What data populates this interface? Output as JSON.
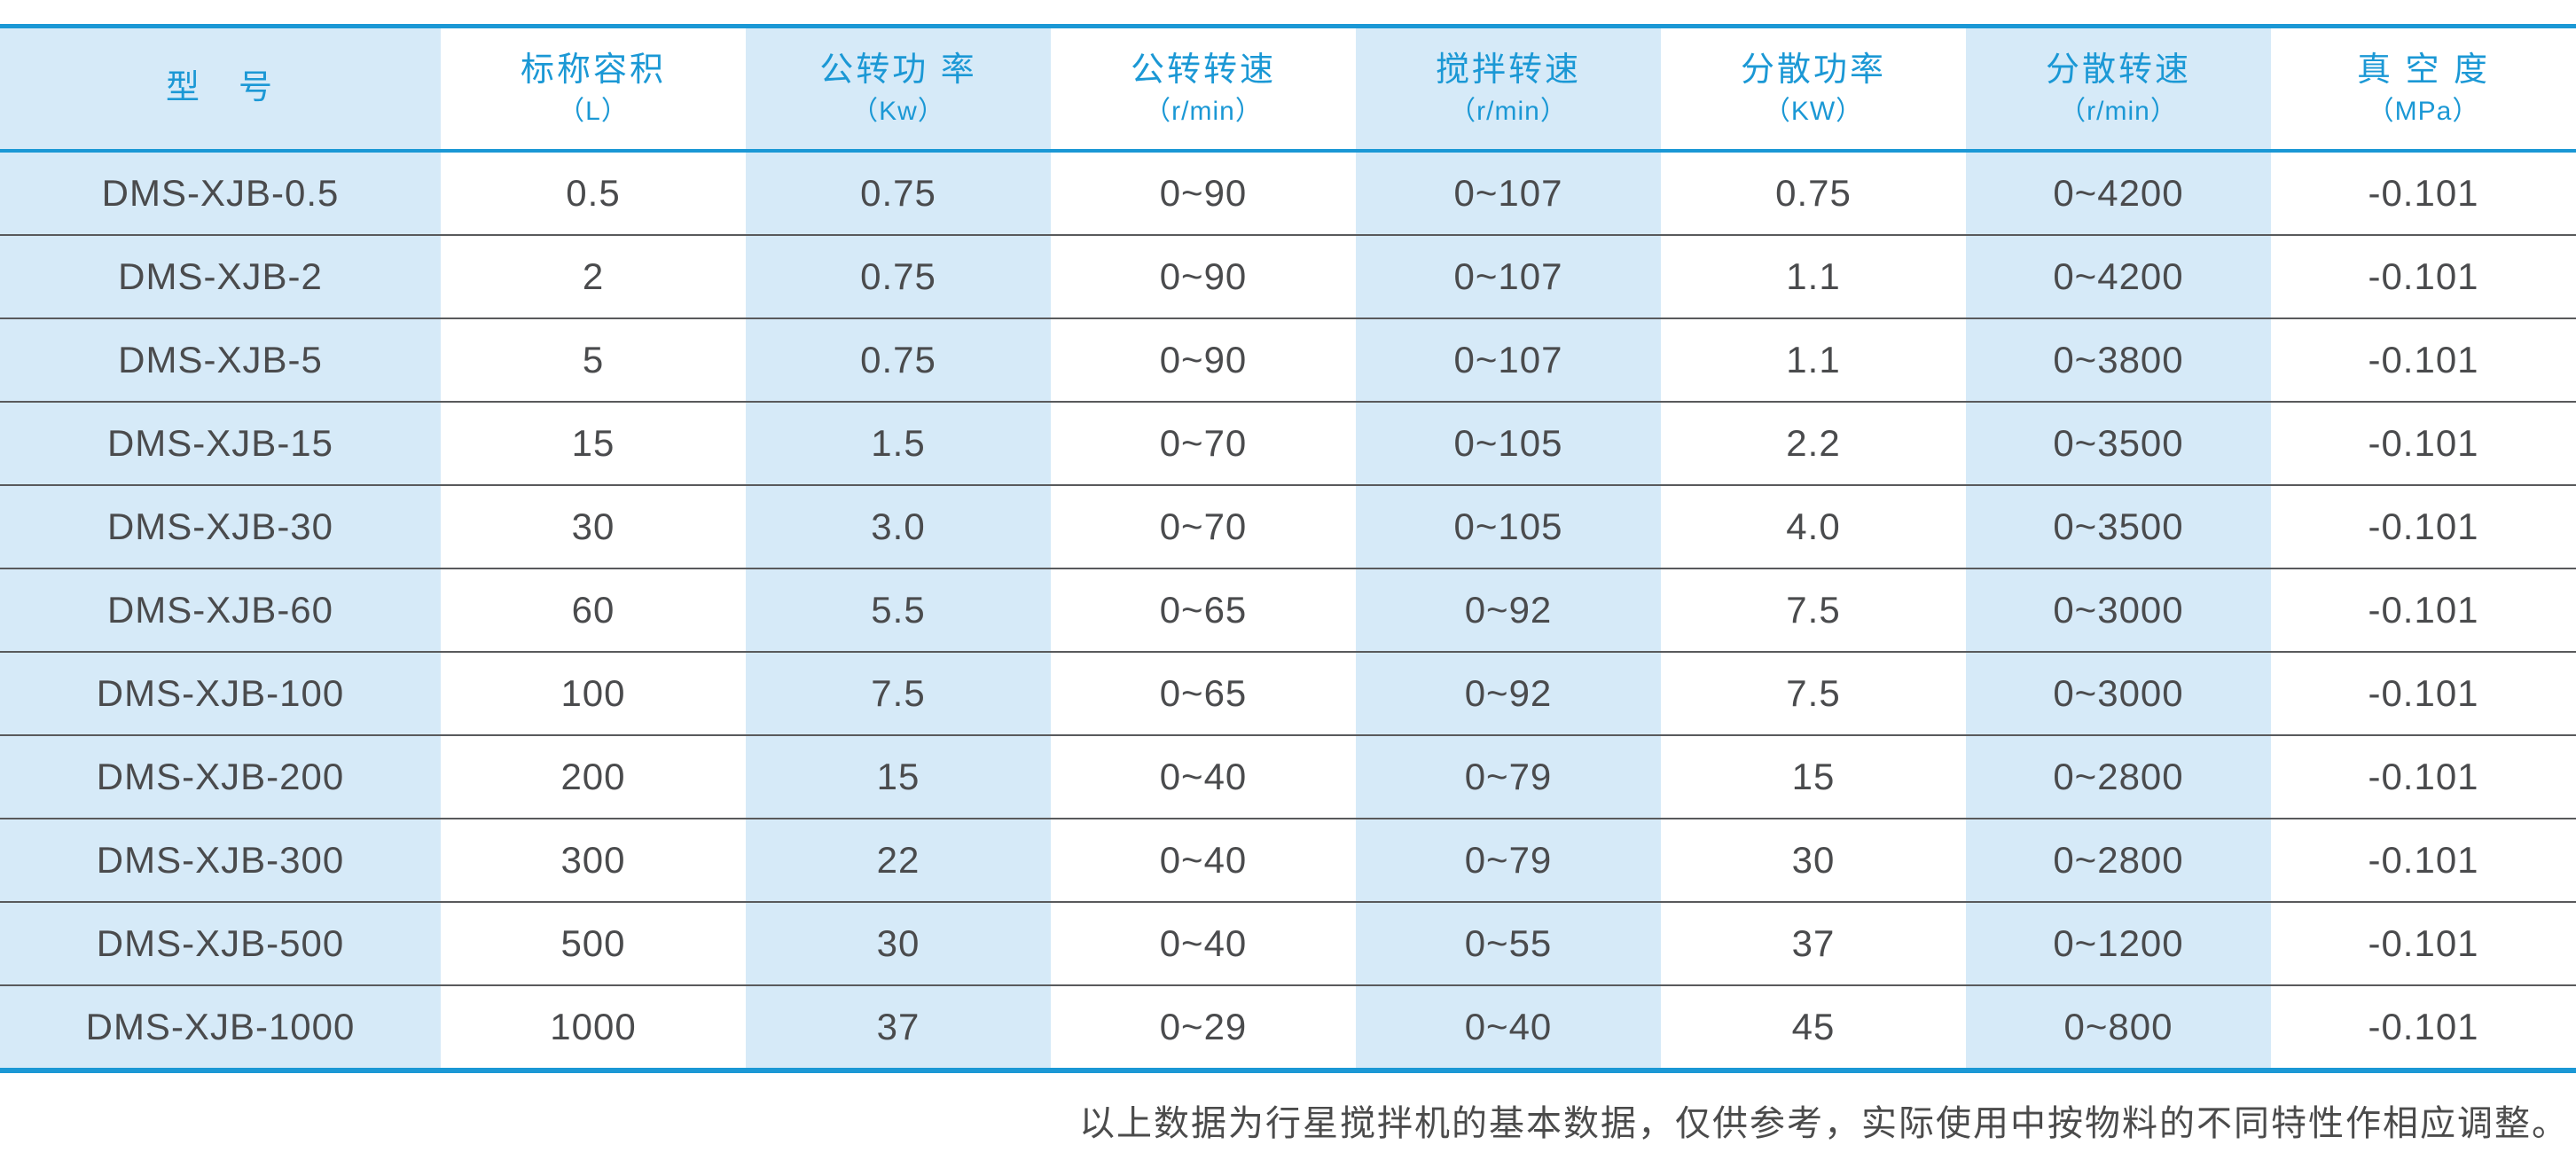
{
  "colors": {
    "accent_blue": "#1b98d5",
    "light_blue_fill": "#d6eaf8",
    "text_dark": "#4a4b4d",
    "row_separator": "#595a5c"
  },
  "table": {
    "columns": [
      {
        "key": "model",
        "title": "型　号",
        "unit": ""
      },
      {
        "key": "capacity",
        "title": "标称容积",
        "unit": "（L）"
      },
      {
        "key": "revolution-power",
        "title": "公转功 率",
        "unit": "（Kw）"
      },
      {
        "key": "revolution-speed",
        "title": "公转转速",
        "unit": "（r/min）"
      },
      {
        "key": "stir-speed",
        "title": "搅拌转速",
        "unit": "（r/min）"
      },
      {
        "key": "dispersion-power",
        "title": "分散功率",
        "unit": "（KW）"
      },
      {
        "key": "dispersion-speed",
        "title": "分散转速",
        "unit": "（r/min）"
      },
      {
        "key": "vacuum",
        "title": "真 空 度",
        "unit": "（MPa）"
      }
    ],
    "rows": [
      [
        "DMS-XJB-0.5",
        "0.5",
        "0.75",
        "0~90",
        "0~107",
        "0.75",
        "0~4200",
        "-0.101"
      ],
      [
        "DMS-XJB-2",
        "2",
        "0.75",
        "0~90",
        "0~107",
        "1.1",
        "0~4200",
        "-0.101"
      ],
      [
        "DMS-XJB-5",
        "5",
        "0.75",
        "0~90",
        "0~107",
        "1.1",
        "0~3800",
        "-0.101"
      ],
      [
        "DMS-XJB-15",
        "15",
        "1.5",
        "0~70",
        "0~105",
        "2.2",
        "0~3500",
        "-0.101"
      ],
      [
        "DMS-XJB-30",
        "30",
        "3.0",
        "0~70",
        "0~105",
        "4.0",
        "0~3500",
        "-0.101"
      ],
      [
        "DMS-XJB-60",
        "60",
        "5.5",
        "0~65",
        "0~92",
        "7.5",
        "0~3000",
        "-0.101"
      ],
      [
        "DMS-XJB-100",
        "100",
        "7.5",
        "0~65",
        "0~92",
        "7.5",
        "0~3000",
        "-0.101"
      ],
      [
        "DMS-XJB-200",
        "200",
        "15",
        "0~40",
        "0~79",
        "15",
        "0~2800",
        "-0.101"
      ],
      [
        "DMS-XJB-300",
        "300",
        "22",
        "0~40",
        "0~79",
        "30",
        "0~2800",
        "-0.101"
      ],
      [
        "DMS-XJB-500",
        "500",
        "30",
        "0~40",
        "0~55",
        "37",
        "0~1200",
        "-0.101"
      ],
      [
        "DMS-XJB-1000",
        "1000",
        "37",
        "0~29",
        "0~40",
        "45",
        "0~800",
        "-0.101"
      ]
    ]
  },
  "footer": {
    "note": "以上数据为行星搅拌机的基本数据，仅供参考，实际使用中按物料的不同特性作相应调整。"
  }
}
